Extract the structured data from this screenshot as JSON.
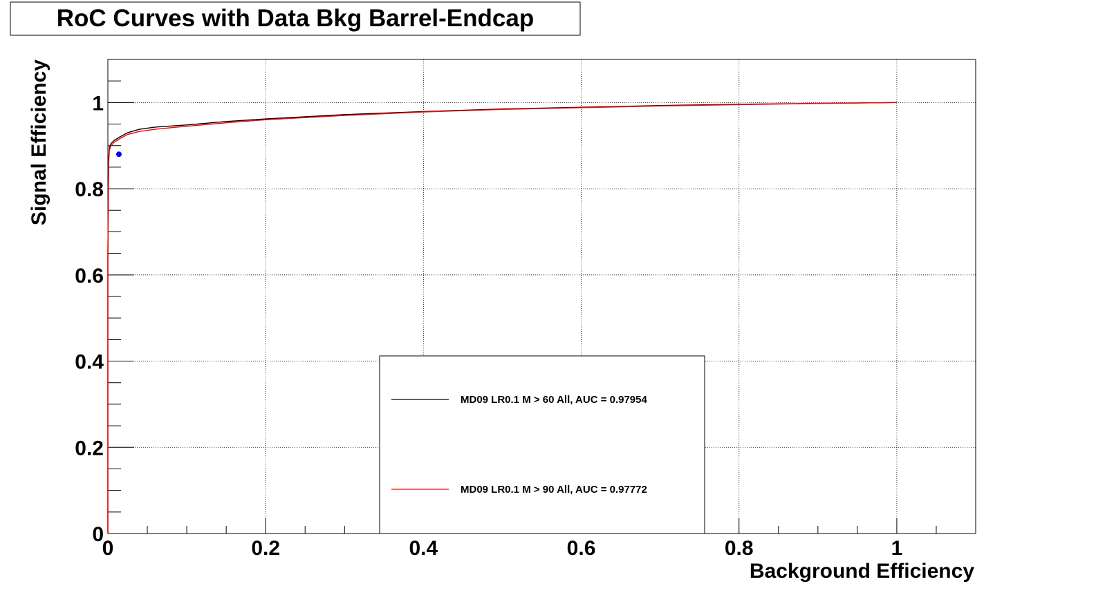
{
  "chart_data": {
    "type": "line",
    "title": "RoC Curves with Data Bkg Barrel-Endcap",
    "xlabel": "Background Efficiency",
    "ylabel": "Signal Efficiency",
    "xlim": [
      0,
      1.1
    ],
    "ylim": [
      0,
      1.1
    ],
    "x_ticks": [
      "0",
      "0.2",
      "0.4",
      "0.6",
      "0.8",
      "1"
    ],
    "y_ticks": [
      "0",
      "0.2",
      "0.4",
      "0.6",
      "0.8",
      "1"
    ],
    "grid": true,
    "legend_position": "bottom-center",
    "series": [
      {
        "name": "MD09 LR0.1 M > 60 All, AUC = 0.97954",
        "color": "#000000",
        "x": [
          0.0,
          0.0,
          0.001,
          0.002,
          0.004,
          0.008,
          0.015,
          0.025,
          0.04,
          0.06,
          0.1,
          0.15,
          0.2,
          0.3,
          0.4,
          0.5,
          0.6,
          0.7,
          0.8,
          0.9,
          1.0
        ],
        "y": [
          0.0,
          0.65,
          0.87,
          0.895,
          0.905,
          0.912,
          0.92,
          0.93,
          0.938,
          0.943,
          0.948,
          0.956,
          0.962,
          0.972,
          0.979,
          0.985,
          0.989,
          0.993,
          0.996,
          0.998,
          1.0
        ]
      },
      {
        "name": "MD09 LR0.1 M > 90 All, AUC = 0.97772",
        "color": "#ff0000",
        "x": [
          0.0,
          0.0,
          0.001,
          0.002,
          0.004,
          0.008,
          0.015,
          0.025,
          0.04,
          0.06,
          0.1,
          0.15,
          0.2,
          0.3,
          0.4,
          0.5,
          0.6,
          0.7,
          0.8,
          0.9,
          1.0
        ],
        "y": [
          0.0,
          0.65,
          0.86,
          0.89,
          0.9,
          0.908,
          0.916,
          0.926,
          0.933,
          0.938,
          0.945,
          0.953,
          0.96,
          0.97,
          0.978,
          0.984,
          0.988,
          0.992,
          0.995,
          0.998,
          1.0
        ]
      }
    ],
    "points": [
      {
        "x": 0.014,
        "y": 0.88,
        "color": "#0000ff"
      }
    ]
  }
}
